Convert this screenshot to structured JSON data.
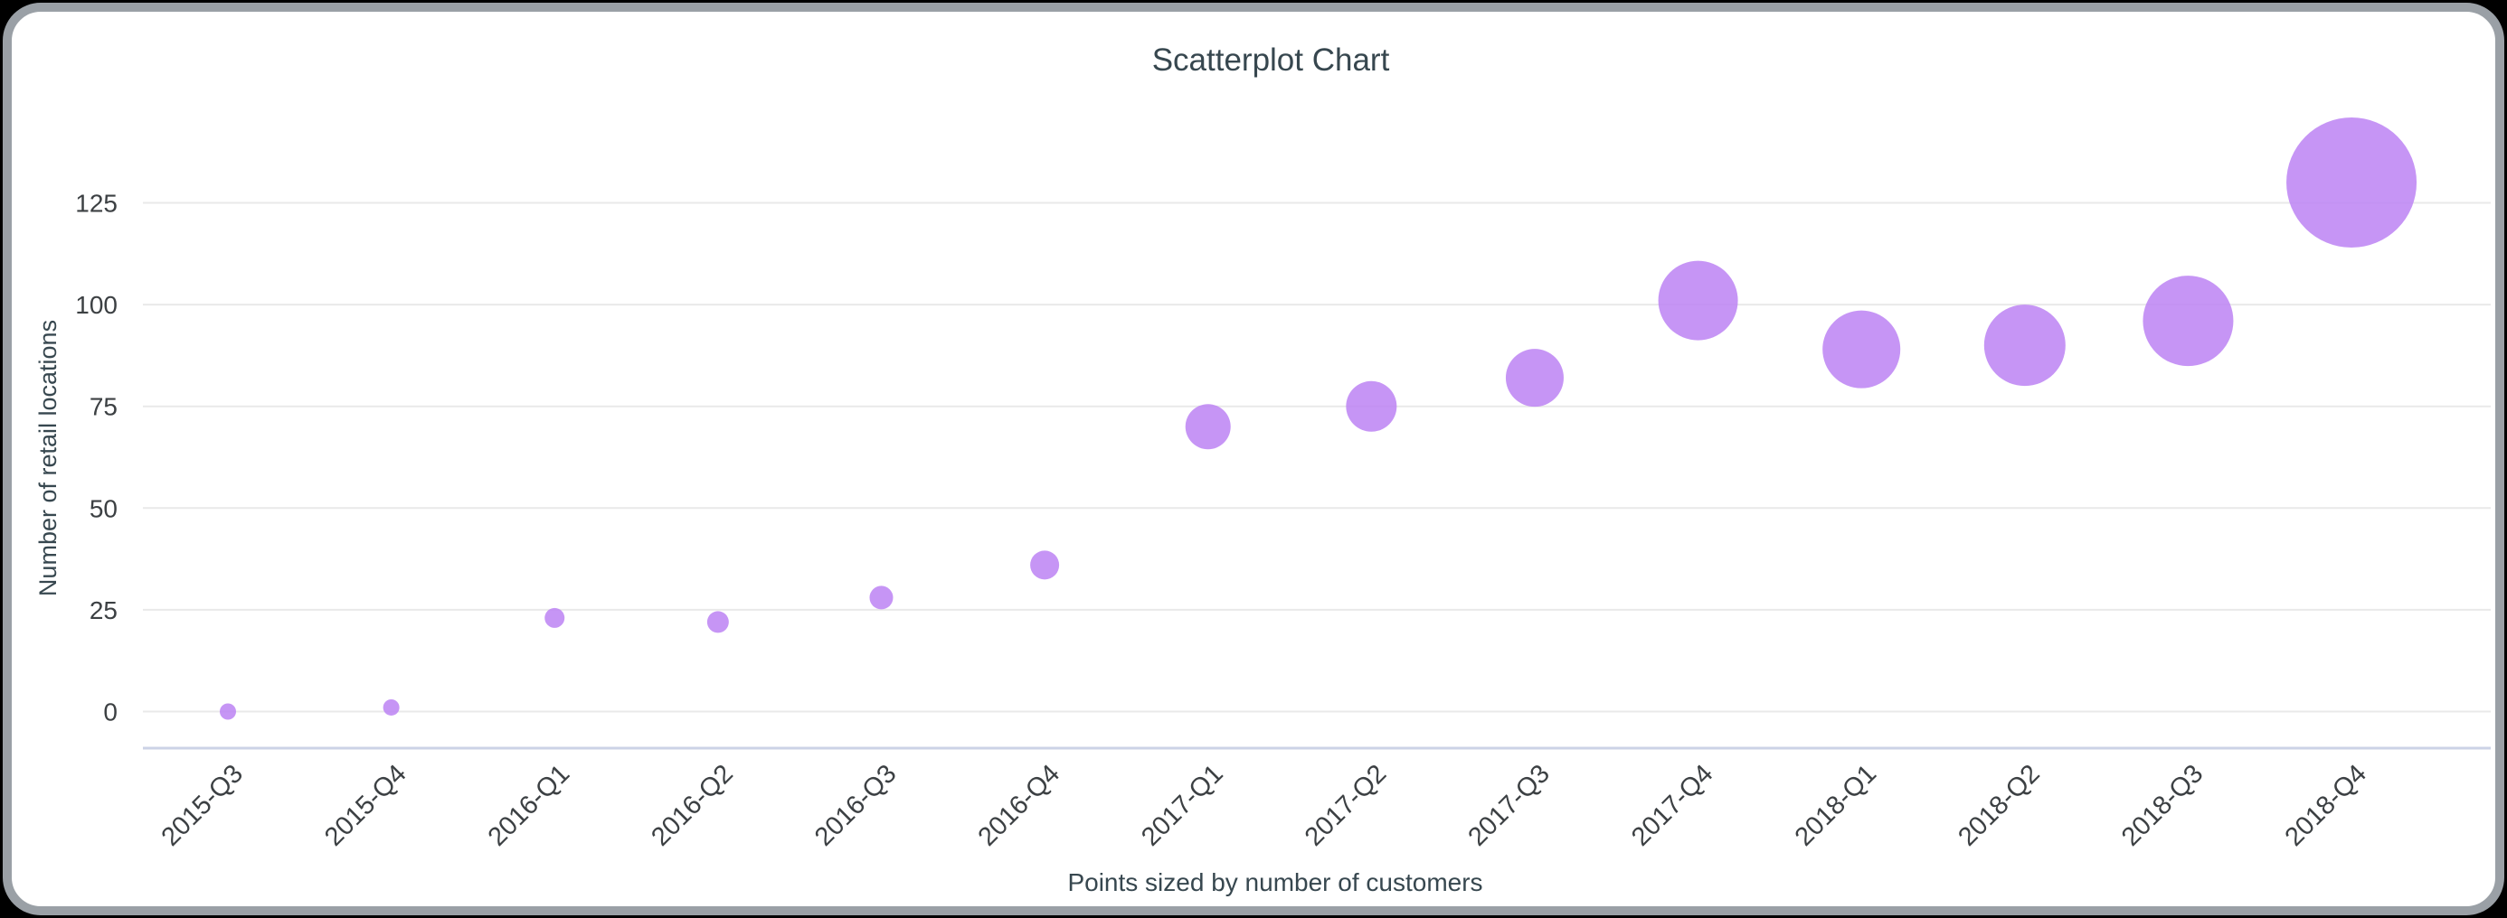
{
  "window": {
    "background_color": "#000000",
    "card_background": "#ffffff",
    "card_border_color": "#9aa0a6"
  },
  "chart_data": {
    "type": "scatter",
    "title": "Scatterplot Chart",
    "ylabel": "Number of retail locations",
    "caption": "Points sized by number of customers",
    "legend": false,
    "grid": true,
    "ylim": [
      0,
      140
    ],
    "yticks": [
      0,
      25,
      50,
      75,
      100,
      125
    ],
    "categories": [
      "2015-Q3",
      "2015-Q4",
      "2016-Q1",
      "2016-Q2",
      "2016-Q3",
      "2016-Q4",
      "2017-Q1",
      "2017-Q2",
      "2017-Q3",
      "2017-Q4",
      "2018-Q1",
      "2018-Q2",
      "2018-Q3",
      "2018-Q4"
    ],
    "series": [
      {
        "name": "Number of retail locations",
        "values": [
          0,
          1,
          23,
          22,
          28,
          36,
          70,
          75,
          82,
          101,
          89,
          90,
          96,
          130
        ],
        "point_radius_px": [
          9,
          9,
          11,
          12,
          13,
          16,
          25,
          28,
          32,
          44,
          43,
          45,
          50,
          72
        ]
      }
    ],
    "colors": {
      "point_fill": "#bd85f3",
      "point_opacity": 0.87,
      "gridline": "#e9e9e9",
      "axis_baseline": "#ccd3e6",
      "tick_label": "#3c4043",
      "title_text": "#37474f"
    }
  }
}
